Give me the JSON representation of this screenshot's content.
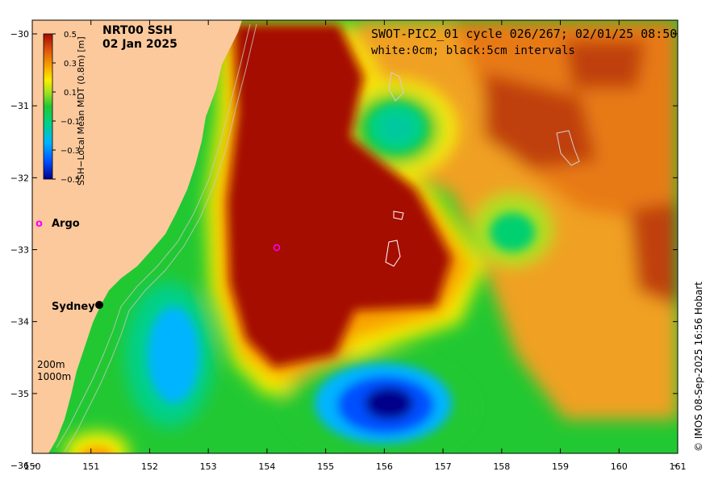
{
  "map": {
    "title": "NRT00 SSH",
    "date": "02 Jan 2025",
    "info_line1": "SWOT-PIC2_01 cycle 026/267; 02/01/25 08:50",
    "info_line2": "white:0cm; black:5cm intervals",
    "credit": "© IMOS 08-Sep-2025 16:56 Hobart",
    "x_ticks": [
      "150",
      "151",
      "152",
      "153",
      "154",
      "155",
      "156",
      "157",
      "158",
      "159",
      "160",
      "161"
    ],
    "y_ticks": [
      "−30",
      "−31",
      "−32",
      "−33",
      "−34",
      "−35",
      "−36"
    ],
    "lon_range": [
      150,
      161
    ],
    "lat_range": [
      -36,
      -30
    ],
    "land_color": "#fcc99c",
    "colorbar": {
      "label": "SSH−Local Mean MDT (0.8m) [m]",
      "ticks": [
        "0.5",
        "0.3",
        "0.1",
        "−0.1",
        "−0.3",
        "−0.5"
      ],
      "range": [
        -0.5,
        0.5
      ]
    },
    "legend": {
      "argo_symbol": "o",
      "argo_label": "Argo",
      "argo_color": "#ff00ff",
      "depth_label_1": "200m",
      "depth_label_2": "1000m"
    },
    "places": [
      {
        "name": "Sydney",
        "lon": 151.2,
        "lat": -33.87
      }
    ],
    "argo_floats": [
      {
        "lon": 154.15,
        "lat": -33.05
      }
    ]
  }
}
